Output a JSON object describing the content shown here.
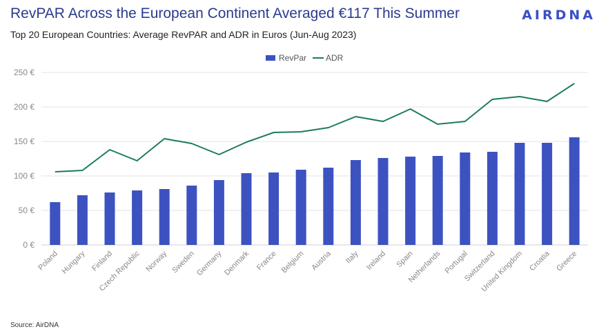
{
  "header": {
    "title": "RevPAR Across the European Continent Averaged €117 This Summer",
    "subtitle": "Top 20 European Countries: Average RevPAR and ADR in Euros (Jun-Aug 2023)",
    "logo_text": "AIRDNA"
  },
  "footer": {
    "source": "Source: AirDNA"
  },
  "colors": {
    "bar": "#3d52c1",
    "line": "#1b7a5e",
    "title": "#2b3a8f",
    "grid": "#e3e3e3",
    "axis_text": "#888888"
  },
  "chart_data": {
    "type": "bar",
    "categories": [
      "Poland",
      "Hungary",
      "Finland",
      "Czech Republic",
      "Norway",
      "Sweden",
      "Germany",
      "Denmark",
      "France",
      "Belgium",
      "Austria",
      "Italy",
      "Ireland",
      "Spain",
      "Netherlands",
      "Portugal",
      "Switzerland",
      "United Kingdom",
      "Croatia",
      "Greece"
    ],
    "series": [
      {
        "name": "RevPar",
        "type": "bar",
        "values": [
          62,
          72,
          76,
          79,
          81,
          86,
          94,
          104,
          105,
          109,
          112,
          123,
          126,
          128,
          129,
          134,
          135,
          148,
          148,
          156
        ]
      },
      {
        "name": "ADR",
        "type": "line",
        "values": [
          106,
          108,
          138,
          122,
          154,
          147,
          131,
          149,
          163,
          164,
          170,
          186,
          179,
          197,
          175,
          179,
          211,
          215,
          208,
          234
        ]
      }
    ],
    "yticks": [
      "0 €",
      "50 €",
      "100 €",
      "150 €",
      "200 €",
      "250 €"
    ],
    "ylim": [
      0,
      250
    ],
    "grid": true,
    "legend_position": "top-center",
    "xlabel": "",
    "ylabel": ""
  }
}
